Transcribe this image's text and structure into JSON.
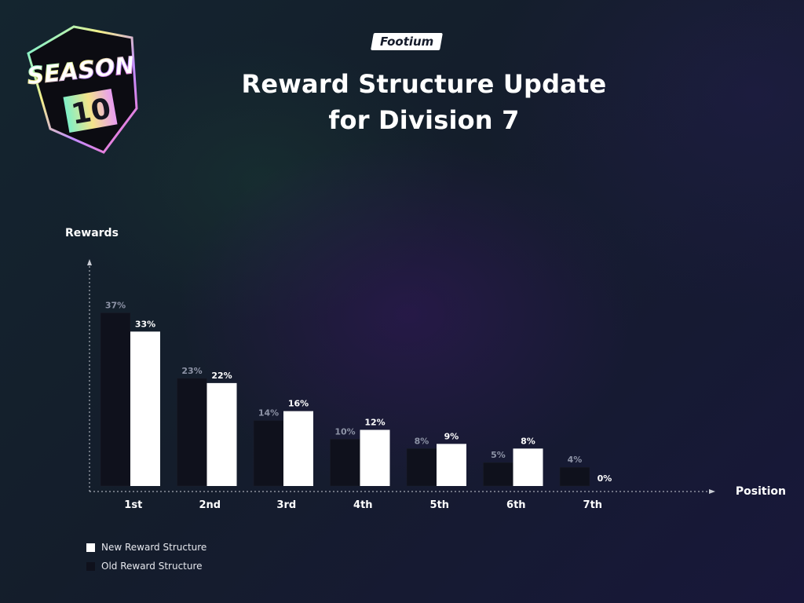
{
  "brand": {
    "name": "Footium"
  },
  "badge": {
    "season_text": "SEASON",
    "season_number": "10"
  },
  "header": {
    "title_line1": "Reward Structure Update",
    "title_line2": "for Division 7"
  },
  "chart_data": {
    "type": "bar",
    "title": "Reward Structure Update for Division 7",
    "xlabel": "Position",
    "ylabel": "Rewards",
    "categories": [
      "1st",
      "2nd",
      "3rd",
      "4th",
      "5th",
      "6th",
      "7th"
    ],
    "series": [
      {
        "name": "Old Reward Structure",
        "values": [
          37,
          23,
          14,
          10,
          8,
          5,
          4
        ],
        "labels": [
          "37%",
          "23%",
          "14%",
          "10%",
          "8%",
          "5%",
          "4%"
        ],
        "color": "#0f111c"
      },
      {
        "name": "New Reward Structure",
        "values": [
          33,
          22,
          16,
          12,
          9,
          8,
          0
        ],
        "labels": [
          "33%",
          "22%",
          "16%",
          "12%",
          "9%",
          "8%",
          "0%"
        ],
        "color": "#ffffff"
      }
    ],
    "ylim": [
      0,
      40
    ],
    "grid": false,
    "legend": "bottom-left"
  },
  "legend": {
    "items": [
      {
        "label": "New Reward Structure",
        "color": "#ffffff"
      },
      {
        "label": "Old Reward Structure",
        "color": "#0f111c"
      }
    ]
  }
}
